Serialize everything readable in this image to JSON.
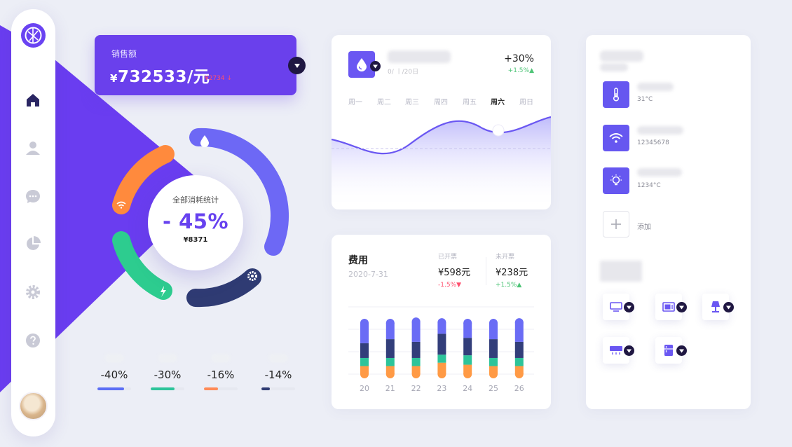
{
  "sidebar": {
    "items": [
      {
        "name": "home",
        "icon": "home-icon"
      },
      {
        "name": "user",
        "icon": "user-icon"
      },
      {
        "name": "messages",
        "icon": "chat-icon"
      },
      {
        "name": "statistics",
        "icon": "pie-chart-icon"
      },
      {
        "name": "settings",
        "icon": "gear-icon"
      },
      {
        "name": "help",
        "icon": "help-icon"
      }
    ]
  },
  "sales": {
    "label": "销售额",
    "currency": "¥",
    "value": "732533/元",
    "delta": "¥2734 ↓"
  },
  "consumption": {
    "label": "全部消耗统计",
    "percent": "- 45%",
    "amount": "¥8371",
    "segments": [
      {
        "name": "water",
        "icon": "water-drop-icon",
        "color": "#6a63f6"
      },
      {
        "name": "wifi",
        "icon": "wifi-icon",
        "color": "#ff8a3d"
      },
      {
        "name": "power",
        "icon": "bolt-icon",
        "color": "#2dcc8f"
      },
      {
        "name": "settings",
        "icon": "gear-icon",
        "color": "#2f3b73"
      }
    ]
  },
  "mini_stats": [
    {
      "value": "-40%",
      "level": 0.8,
      "color": "#5b6ef5"
    },
    {
      "value": "-30%",
      "level": 0.7,
      "color": "#2dc49a"
    },
    {
      "value": "-16%",
      "level": 0.42,
      "color": "#ff8a57"
    },
    {
      "value": "-14%",
      "level": 0.25,
      "color": "#2f3b73"
    }
  ],
  "weekly": {
    "date": "0/ 丨/20日",
    "percent": "+30%",
    "sub": "+1.5%▲",
    "days": [
      "周一",
      "周二",
      "周三",
      "周四",
      "周五",
      "周六",
      "周日"
    ],
    "active_day": "周六"
  },
  "expense": {
    "title": "费用",
    "date": "2020-7-31",
    "invoiced": {
      "label": "已开票",
      "amount": "¥598元",
      "change": "-1.5%▼"
    },
    "not_invoiced": {
      "label": "未开票",
      "amount": "¥238元",
      "change": "+1.5%▲"
    }
  },
  "chart_data": {
    "type": "bar",
    "categories": [
      "20",
      "21",
      "22",
      "23",
      "24",
      "25",
      "26"
    ],
    "series": [
      {
        "values": [
          12,
          12,
          12,
          17,
          14,
          12,
          12
        ],
        "color": "#ff9a45"
      },
      {
        "values": [
          12,
          12,
          12,
          12,
          14,
          12,
          12
        ],
        "color": "#2dc49a"
      },
      {
        "values": [
          22,
          28,
          24,
          31,
          26,
          28,
          24
        ],
        "color": "#323e7a"
      },
      {
        "values": [
          30,
          24,
          30,
          17,
          22,
          24,
          29
        ],
        "color": "#6a6cf5"
      }
    ],
    "ylim": [
      0,
      100
    ],
    "stacked": true,
    "grid": true
  },
  "devices": {
    "items": [
      {
        "icon": "thermometer-icon",
        "value": "31°C"
      },
      {
        "icon": "wifi-icon",
        "value": "12345678"
      },
      {
        "icon": "bulb-icon",
        "value": "1234°C"
      }
    ],
    "add_label": "添加",
    "appliances": [
      {
        "icon": "tv-icon"
      },
      {
        "icon": "microwave-icon"
      },
      {
        "icon": "lamp-icon"
      },
      {
        "icon": "air-conditioner-icon"
      },
      {
        "icon": "fridge-icon"
      }
    ]
  },
  "colors": {
    "accent": "#6a40ec",
    "dark": "#1f1742",
    "green": "#4dc476",
    "red": "#ff4f6e"
  }
}
